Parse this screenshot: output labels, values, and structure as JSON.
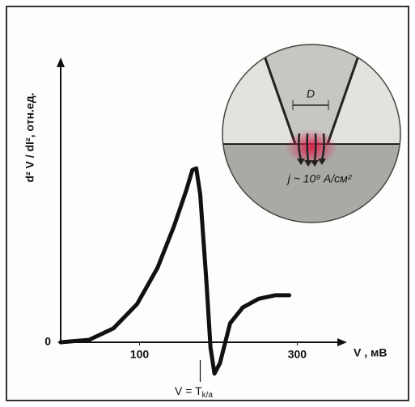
{
  "chart_data": {
    "type": "line",
    "y_label": "d² V / dI², отн.ед.",
    "x_label": "V , мВ",
    "x": [
      0,
      36,
      67,
      97,
      123,
      144,
      159,
      167,
      172,
      177,
      185,
      190,
      195,
      202,
      215,
      231,
      251,
      272,
      290
    ],
    "values": [
      0,
      0.014,
      0.08,
      0.22,
      0.43,
      0.67,
      0.87,
      0.99,
      1.0,
      0.85,
      0.34,
      -0.03,
      -0.18,
      -0.12,
      0.11,
      0.2,
      0.25,
      0.27,
      0.27
    ],
    "color": "#111111",
    "xlim": [
      0,
      355
    ],
    "xticks": [
      100,
      300
    ],
    "ylim": [
      -0.3,
      1.6
    ],
    "yticks": [
      0
    ],
    "grid": false,
    "annotation": {
      "x": 177,
      "text": "V = T",
      "subscript": "k/a"
    }
  },
  "inset": {
    "dimension": "D",
    "current_density": "j ~ 10⁹ A/см²"
  }
}
